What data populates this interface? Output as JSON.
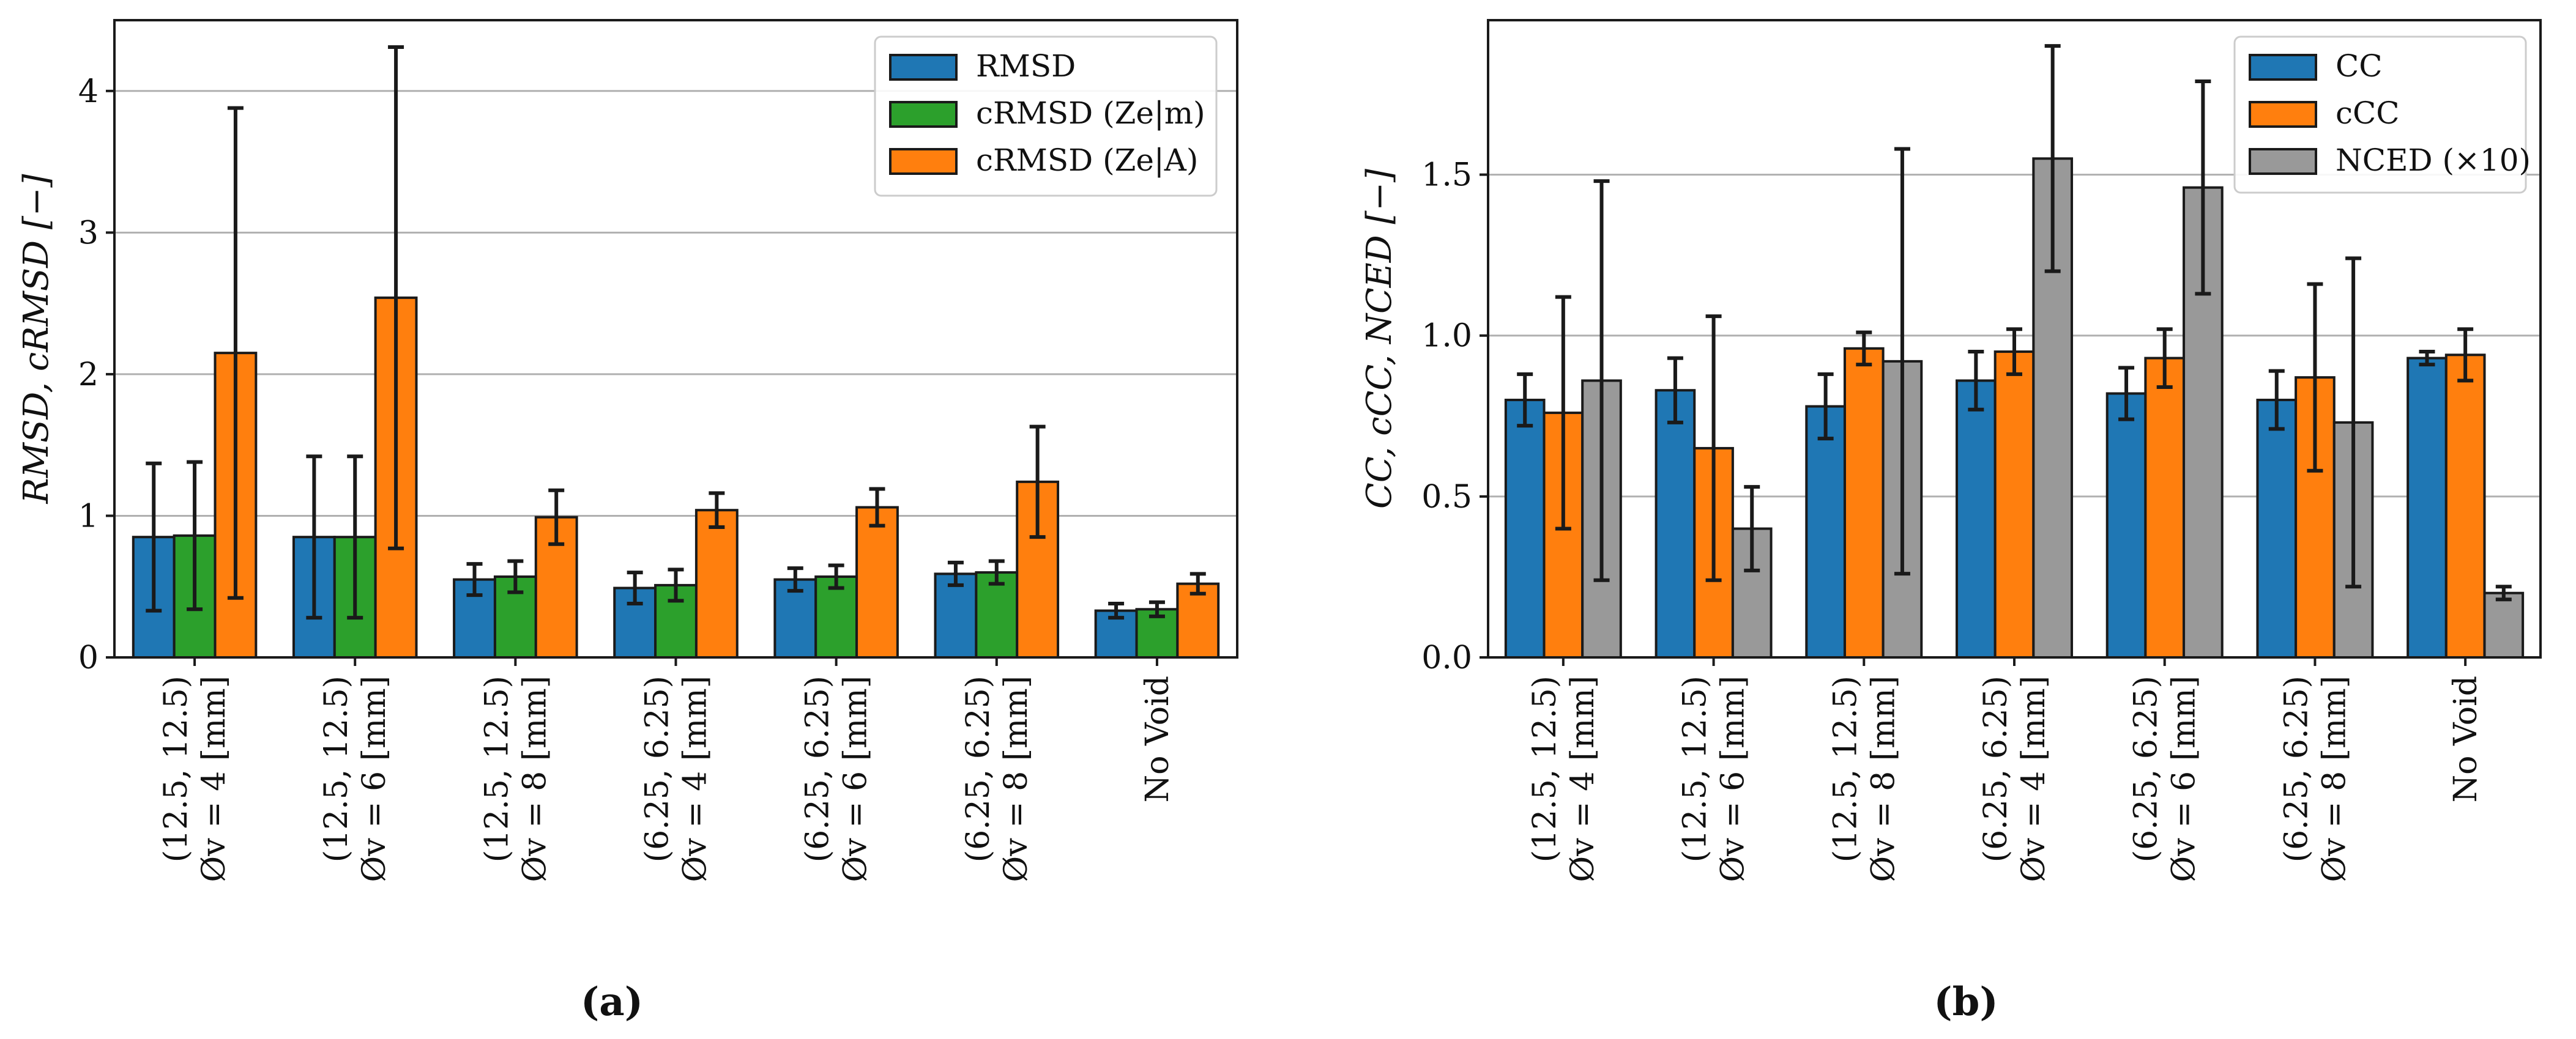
{
  "chart_data": [
    {
      "type": "bar",
      "panel_label": "(a)",
      "ylabel": "RMSD, cRMSD [−]",
      "ylim": [
        0,
        4.5
      ],
      "yticks": [
        0,
        1,
        2,
        3,
        4
      ],
      "ytick_labels": [
        "0",
        "1",
        "2",
        "3",
        "4"
      ],
      "grid": "horizontal",
      "legend_position": "top-right",
      "categories": [
        [
          "(12.5, 12.5)",
          "Øv = 4 [mm]"
        ],
        [
          "(12.5, 12.5)",
          "Øv = 6 [mm]"
        ],
        [
          "(12.5, 12.5)",
          "Øv = 8 [mm]"
        ],
        [
          "(6.25, 6.25)",
          "Øv = 4 [mm]"
        ],
        [
          "(6.25, 6.25)",
          "Øv = 6 [mm]"
        ],
        [
          "(6.25, 6.25)",
          "Øv = 8 [mm]"
        ],
        [
          "No Void"
        ]
      ],
      "series": [
        {
          "name": "RMSD",
          "color": "#1f77b4",
          "values": [
            0.85,
            0.85,
            0.55,
            0.49,
            0.55,
            0.59,
            0.33
          ],
          "errors": [
            0.52,
            0.57,
            0.11,
            0.11,
            0.08,
            0.08,
            0.05
          ]
        },
        {
          "name": "cRMSD (Ze|m)",
          "color": "#2ca02c",
          "values": [
            0.86,
            0.85,
            0.57,
            0.51,
            0.57,
            0.6,
            0.34
          ],
          "errors": [
            0.52,
            0.57,
            0.11,
            0.11,
            0.08,
            0.08,
            0.05
          ]
        },
        {
          "name": "cRMSD (Ze|A)",
          "color": "#ff7f0e",
          "values": [
            2.15,
            2.54,
            0.99,
            1.04,
            1.06,
            1.24,
            0.52
          ],
          "errors": [
            1.73,
            1.77,
            0.19,
            0.12,
            0.13,
            0.39,
            0.07
          ]
        }
      ]
    },
    {
      "type": "bar",
      "panel_label": "(b)",
      "ylabel": "CC, cCC, NCED [−]",
      "ylim": [
        0,
        1.98
      ],
      "yticks": [
        0,
        0.5,
        1.0,
        1.5
      ],
      "ytick_labels": [
        "0.0",
        "0.5",
        "1.0",
        "1.5"
      ],
      "grid": "horizontal",
      "legend_position": "top-right",
      "categories": [
        [
          "(12.5, 12.5)",
          "Øv = 4 [mm]"
        ],
        [
          "(12.5, 12.5)",
          "Øv = 6 [mm]"
        ],
        [
          "(12.5, 12.5)",
          "Øv = 8 [mm]"
        ],
        [
          "(6.25, 6.25)",
          "Øv = 4 [mm]"
        ],
        [
          "(6.25, 6.25)",
          "Øv = 6 [mm]"
        ],
        [
          "(6.25, 6.25)",
          "Øv = 8 [mm]"
        ],
        [
          "No Void"
        ]
      ],
      "series": [
        {
          "name": "CC",
          "color": "#1f77b4",
          "values": [
            0.8,
            0.83,
            0.78,
            0.86,
            0.82,
            0.8,
            0.93
          ],
          "errors": [
            0.08,
            0.1,
            0.1,
            0.09,
            0.08,
            0.09,
            0.02
          ]
        },
        {
          "name": "cCC",
          "color": "#ff7f0e",
          "values": [
            0.76,
            0.65,
            0.96,
            0.95,
            0.93,
            0.87,
            0.94
          ],
          "errors": [
            0.36,
            0.41,
            0.05,
            0.07,
            0.09,
            0.29,
            0.08
          ]
        },
        {
          "name": "NCED (×10)",
          "color": "#999999",
          "values": [
            0.86,
            0.4,
            0.92,
            1.55,
            1.46,
            0.73,
            0.2
          ],
          "errors": [
            0.62,
            0.13,
            0.66,
            0.35,
            0.33,
            0.51,
            0.02
          ]
        }
      ]
    }
  ]
}
